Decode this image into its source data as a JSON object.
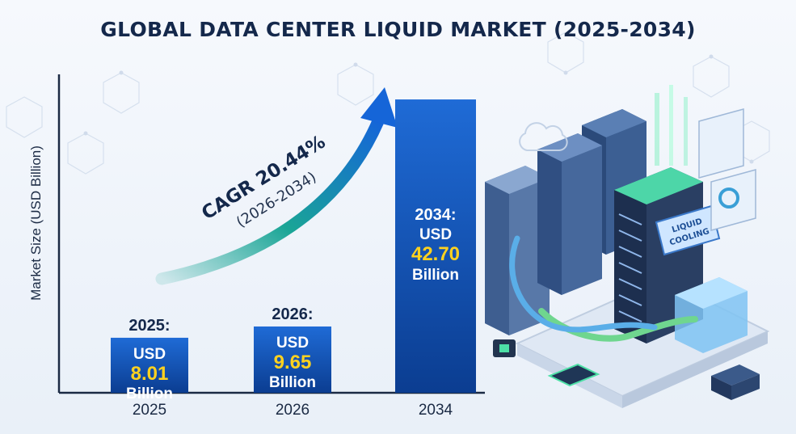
{
  "title": "GLOBAL DATA CENTER LIQUID MARKET (2025-2034)",
  "chart_data": {
    "type": "bar",
    "title": "GLOBAL DATA CENTER LIQUID MARKET (2025-2034)",
    "ylabel": "Market Size (USD Billion)",
    "xlabel": "",
    "categories": [
      "2025",
      "2026",
      "2034"
    ],
    "values": [
      8.01,
      9.65,
      42.7
    ],
    "unit": "USD Billion",
    "ylim": [
      0,
      46
    ],
    "bar_labels": [
      {
        "year": "2025:",
        "currency": "USD",
        "value": "8.01",
        "unit": "Billion"
      },
      {
        "year": "2026:",
        "currency": "USD",
        "value": "9.65",
        "unit": "Billion"
      },
      {
        "year": "2034:",
        "currency": "USD",
        "value": "42.70",
        "unit": "Billion"
      }
    ],
    "annotation": {
      "text": "CAGR 20.44%",
      "subtext": "(2026-2034)"
    },
    "grid": false,
    "legend": "none"
  },
  "illustration": {
    "badge_line1": "LIQUID",
    "badge_line2": "COOLING"
  },
  "colors": {
    "bar_top": "#1f6bd6",
    "bar_bottom": "#0b3d91",
    "value_text": "#ffd21f",
    "label_text": "#ffffff",
    "title_text": "#14284b",
    "axis": "#1b2a44",
    "arrow_start": "#1aa596",
    "arrow_end": "#1565d8"
  }
}
